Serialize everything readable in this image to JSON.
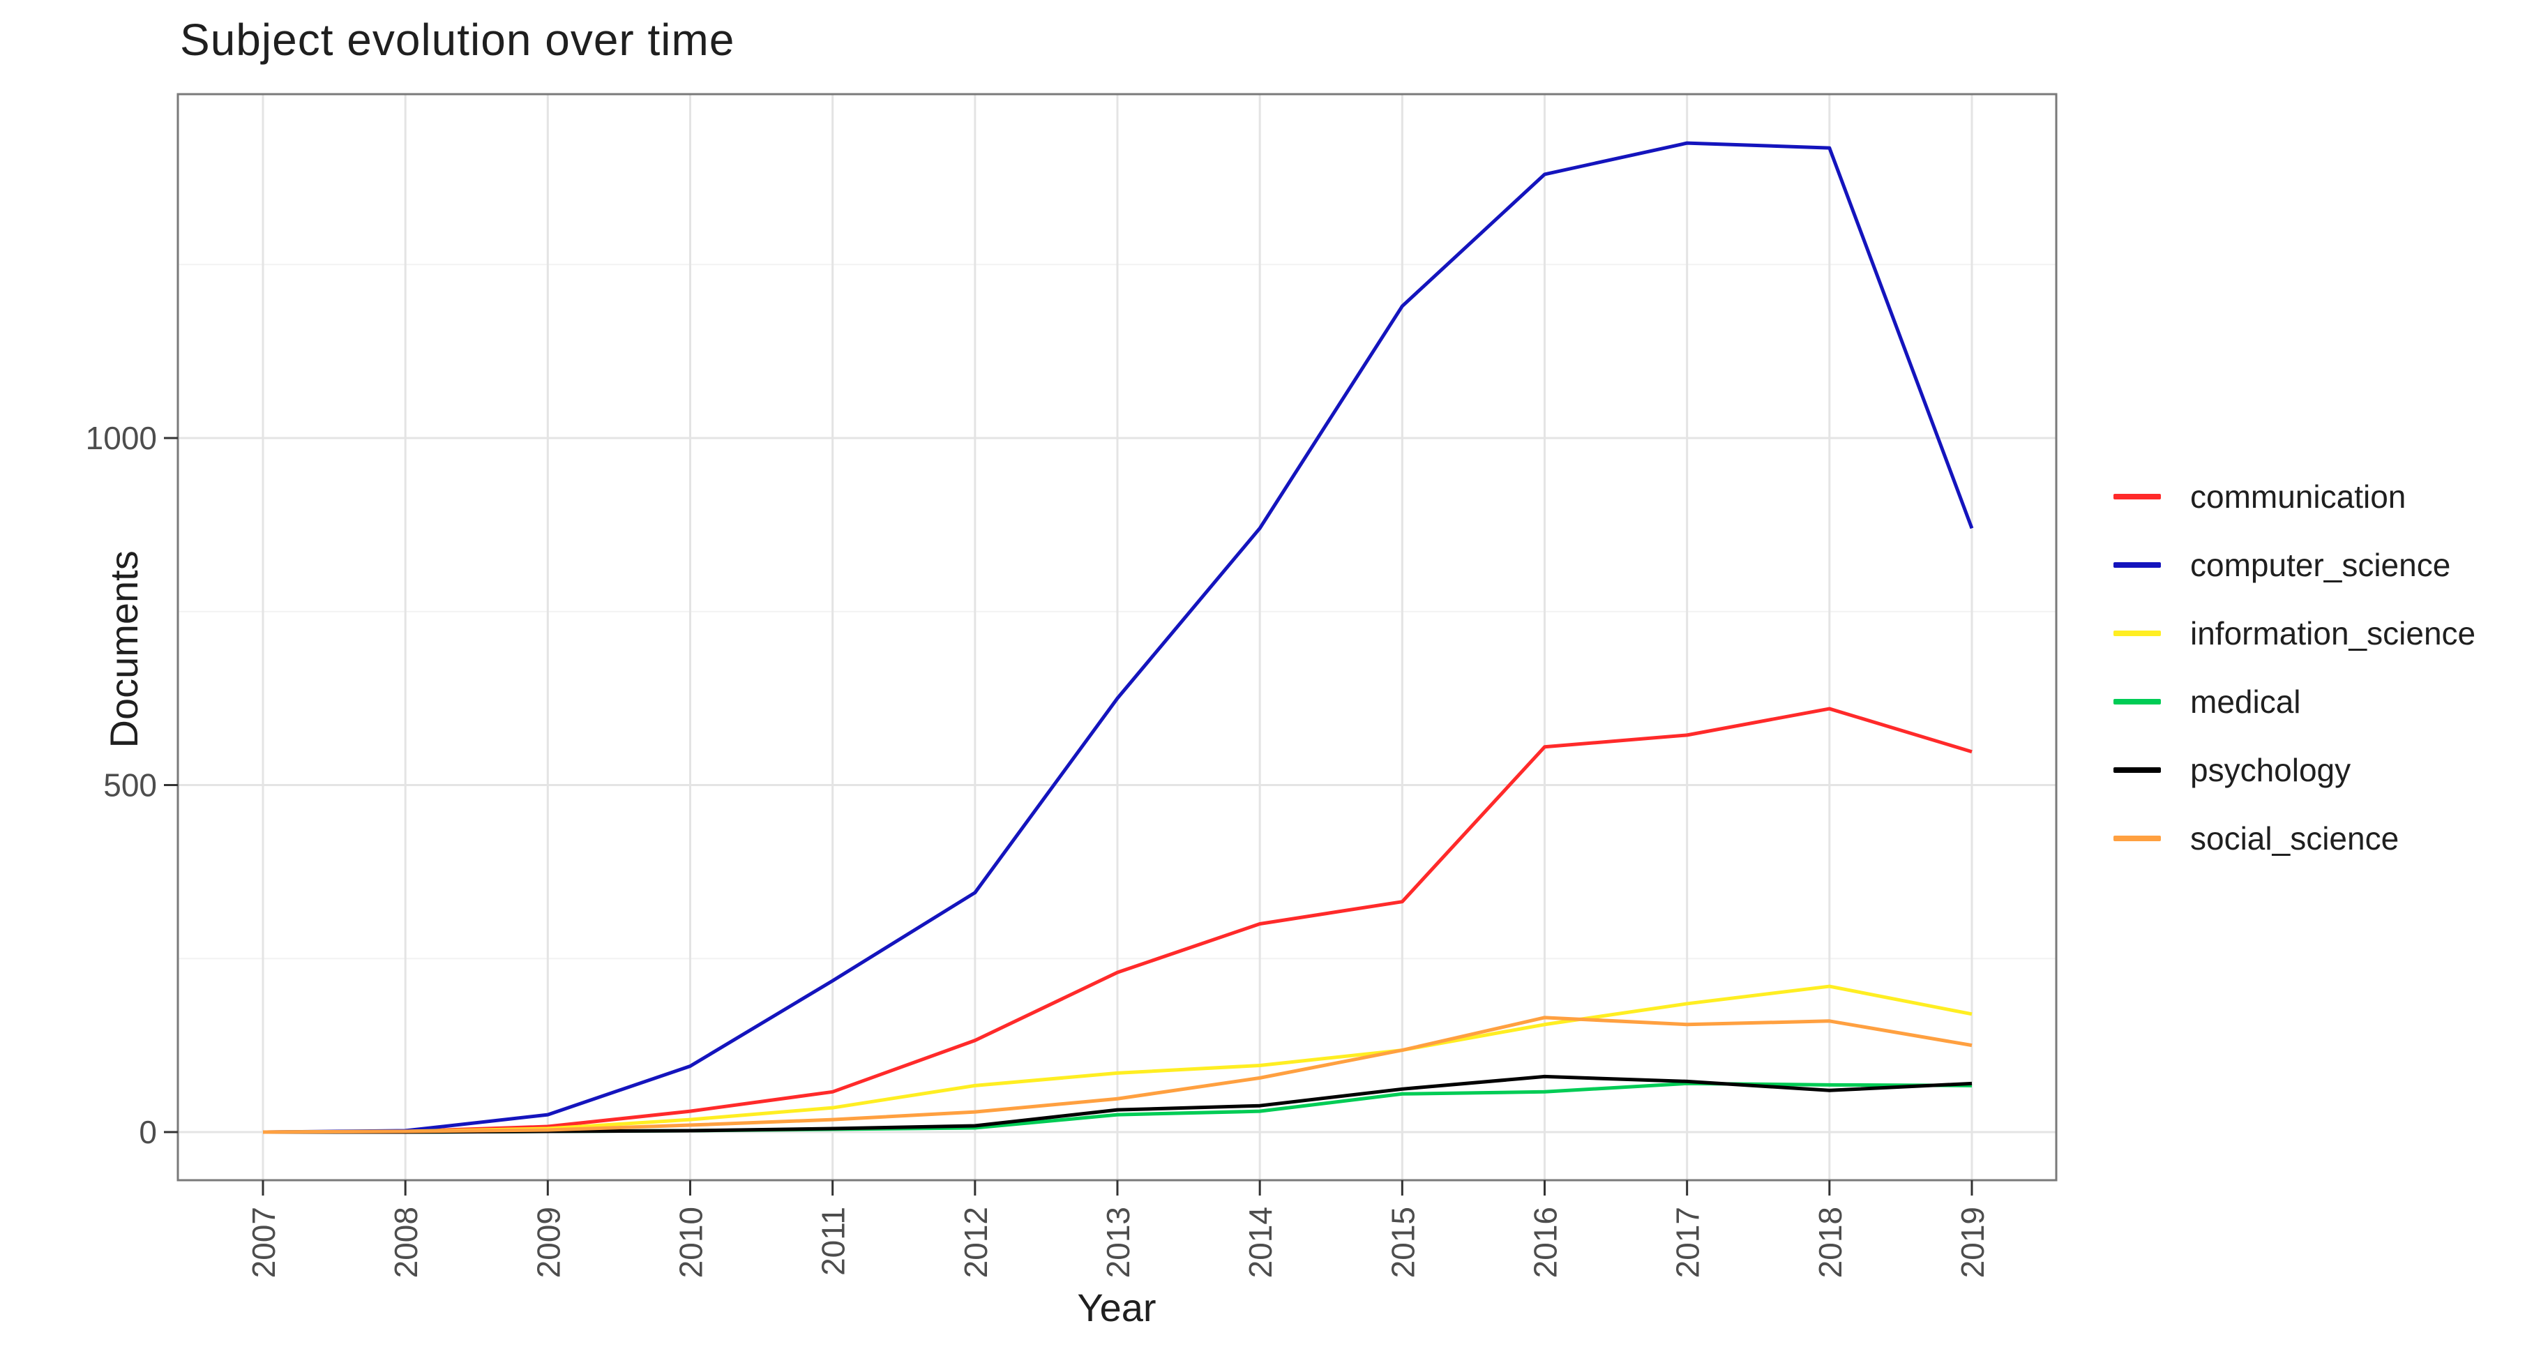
{
  "chart_data": {
    "type": "line",
    "title": "Subject evolution over time",
    "xlabel": "Year",
    "ylabel": "Documents",
    "x": [
      2007,
      2008,
      2009,
      2010,
      2011,
      2012,
      2013,
      2014,
      2015,
      2016,
      2017,
      2018,
      2019
    ],
    "x_tick_labels": [
      "2007",
      "2008",
      "2009",
      "2010",
      "2011",
      "2012",
      "2013",
      "2014",
      "2015",
      "2016",
      "2017",
      "2018",
      "2019"
    ],
    "y_ticks": [
      0,
      500,
      1000
    ],
    "y_tick_labels": [
      "0",
      "500",
      "1000"
    ],
    "y_minor_ticks": [
      250,
      750,
      1250
    ],
    "ylim": [
      -69,
      1495
    ],
    "grid": "on",
    "legend_position": "right",
    "series": [
      {
        "name": "communication",
        "color": "#ff2a2a",
        "values": [
          0,
          1,
          8,
          30,
          58,
          132,
          230,
          300,
          332,
          555,
          572,
          610,
          548
        ]
      },
      {
        "name": "computer_science",
        "color": "#1414bd",
        "values": [
          0,
          2,
          25,
          95,
          218,
          345,
          625,
          870,
          1190,
          1380,
          1425,
          1418,
          870
        ]
      },
      {
        "name": "information_science",
        "color": "#ffee22",
        "values": [
          0,
          1,
          5,
          18,
          35,
          67,
          85,
          96,
          118,
          155,
          185,
          210,
          170
        ]
      },
      {
        "name": "medical",
        "color": "#00cc55",
        "values": [
          0,
          0,
          1,
          2,
          4,
          6,
          25,
          30,
          55,
          58,
          70,
          68,
          67
        ]
      },
      {
        "name": "psychology",
        "color": "#000000",
        "values": [
          0,
          0,
          1,
          2,
          5,
          9,
          32,
          38,
          62,
          80,
          73,
          60,
          70
        ]
      },
      {
        "name": "social_science",
        "color": "#ffa040",
        "values": [
          0,
          1,
          3,
          10,
          18,
          29,
          48,
          78,
          118,
          165,
          155,
          160,
          125
        ]
      }
    ]
  },
  "style": {
    "background": "#ffffff",
    "title_color": "#1f1f1f",
    "axis_title_color": "#1f1f1f",
    "axis_text_color": "#4d4d4d",
    "tick_color": "#333333",
    "panel_border": "#7a7a7a",
    "grid_major": "#e4e4e4",
    "grid_minor": "#f2f2f2"
  }
}
